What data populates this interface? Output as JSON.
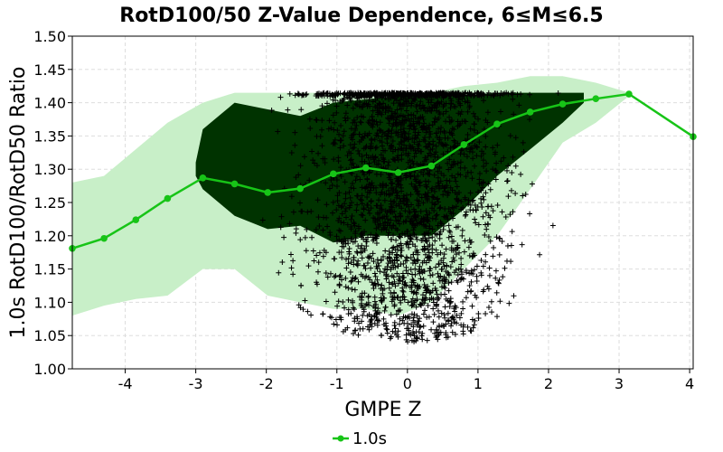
{
  "chart_data": {
    "type": "scatter",
    "title": "RotD100/50 Z-Value Dependence, 6≤M≤6.5",
    "xlabel": "GMPE Z",
    "ylabel": "1.0s RotD100/RotD50 Ratio",
    "xlim": [
      -4.75,
      4.05
    ],
    "ylim": [
      1.0,
      1.5
    ],
    "xticks": [
      -4,
      -3,
      -2,
      -1,
      0,
      1,
      2,
      3,
      4
    ],
    "yticks": [
      1.0,
      1.05,
      1.1,
      1.15,
      1.2,
      1.25,
      1.3,
      1.35,
      1.4,
      1.45,
      1.5
    ],
    "ytick_labels": [
      "1.00",
      "1.05",
      "1.10",
      "1.15",
      "1.20",
      "1.25",
      "1.30",
      "1.35",
      "1.40",
      "1.45",
      "1.50"
    ],
    "grid": true,
    "legend": "bottom-center",
    "colors": {
      "line": "#17c417",
      "outer_band": "#c8efc8",
      "inner_band": "#003300",
      "scatter": "#000000",
      "grid": "#dddddd"
    },
    "series": [
      {
        "name": "1.0s",
        "type": "line",
        "x": [
          -4.75,
          -4.3,
          -3.85,
          -3.4,
          -2.9,
          -2.45,
          -1.98,
          -1.52,
          -1.05,
          -0.59,
          -0.13,
          0.34,
          0.8,
          1.27,
          1.74,
          2.2,
          2.67,
          3.14,
          4.05
        ],
        "y": [
          1.181,
          1.196,
          1.224,
          1.256,
          1.287,
          1.278,
          1.265,
          1.271,
          1.293,
          1.302,
          1.295,
          1.305,
          1.337,
          1.368,
          1.386,
          1.398,
          1.406,
          1.413,
          1.349
        ]
      },
      {
        "name": "",
        "type": "band",
        "x": [
          -4.75,
          -4.3,
          -3.85,
          -3.4,
          -2.9,
          -2.45,
          -1.98,
          -1.52,
          -1.05,
          -0.59,
          -0.13,
          0.34,
          0.8,
          1.27,
          1.74,
          2.2,
          2.67,
          3.14
        ],
        "upper": [
          1.28,
          1.29,
          1.33,
          1.37,
          1.4,
          1.415,
          1.415,
          1.415,
          1.415,
          1.415,
          1.415,
          1.415,
          1.425,
          1.43,
          1.44,
          1.44,
          1.43,
          1.415
        ],
        "lower": [
          1.08,
          1.095,
          1.105,
          1.11,
          1.15,
          1.15,
          1.11,
          1.1,
          1.09,
          1.09,
          1.08,
          1.1,
          1.15,
          1.2,
          1.27,
          1.34,
          1.37,
          1.41
        ]
      },
      {
        "name": "",
        "type": "band",
        "x": [
          -3.0,
          -2.9,
          -2.45,
          -1.98,
          -1.52,
          -1.05,
          -0.59,
          -0.13,
          0.34,
          0.8,
          1.27,
          1.74,
          2.2,
          2.5
        ],
        "upper": [
          1.31,
          1.36,
          1.4,
          1.39,
          1.38,
          1.4,
          1.405,
          1.41,
          1.41,
          1.41,
          1.415,
          1.415,
          1.415,
          1.415
        ],
        "lower": [
          1.29,
          1.27,
          1.23,
          1.21,
          1.215,
          1.19,
          1.2,
          1.2,
          1.2,
          1.24,
          1.29,
          1.33,
          1.37,
          1.4
        ]
      }
    ]
  }
}
